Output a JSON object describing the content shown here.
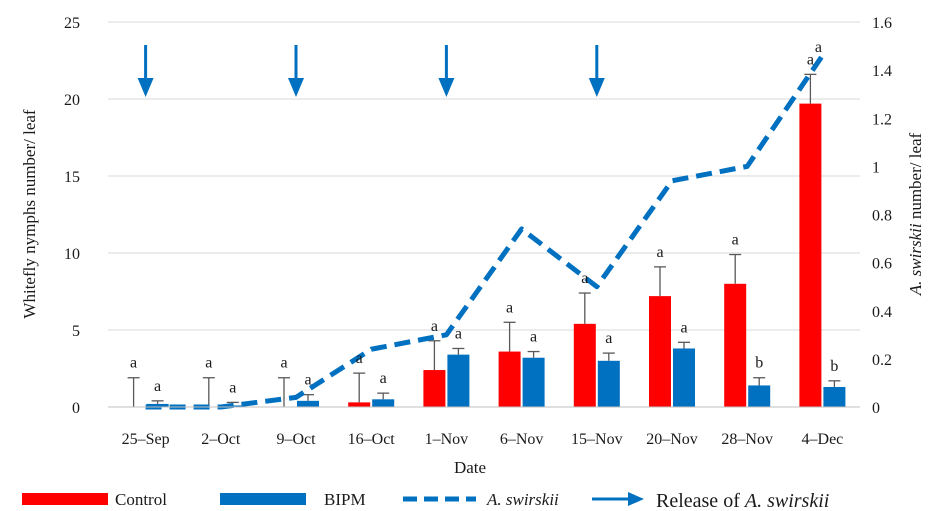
{
  "chart_data": {
    "type": "bar",
    "categories": [
      "25–Sep",
      "2–Oct",
      "9–Oct",
      "16–Oct",
      "1–Nov",
      "6–Nov",
      "15–Nov",
      "20–Nov",
      "28–Nov",
      "4–Dec"
    ],
    "xlabel": "Date",
    "ylabel": "Whitefly nymphs number/ leaf",
    "y2label_italic": "A. swirskii",
    "y2label_rest": " number/ leaf",
    "ylim": [
      0,
      25
    ],
    "y2lim": [
      0,
      1.6
    ],
    "y_ticks": [
      "0",
      "5",
      "10",
      "15",
      "20",
      "25"
    ],
    "y2_ticks": [
      "0",
      "0.2",
      "0.4",
      "0.6",
      "0.8",
      "1",
      "1.2",
      "1.4",
      "1.6"
    ],
    "grid": "horizontal",
    "series": [
      {
        "name": "Control",
        "kind": "bar",
        "axis": "left",
        "color": "#ff0000",
        "values": [
          0,
          0,
          0,
          0.3,
          2.4,
          3.6,
          5.4,
          7.2,
          8.0,
          19.7
        ],
        "error": [
          1.9,
          1.9,
          1.9,
          1.9,
          1.9,
          1.9,
          2.0,
          1.9,
          1.9,
          1.9
        ],
        "letters": [
          "a",
          "a",
          "a",
          "a",
          "a",
          "a",
          "a",
          "a",
          "a",
          "a"
        ]
      },
      {
        "name": "BIPM",
        "kind": "bar",
        "axis": "left",
        "color": "#0070c0",
        "values": [
          0.2,
          0.1,
          0.4,
          0.5,
          3.4,
          3.2,
          3.0,
          3.8,
          1.4,
          1.3
        ],
        "error": [
          0.2,
          0.2,
          0.4,
          0.4,
          0.4,
          0.4,
          0.5,
          0.4,
          0.5,
          0.4
        ],
        "letters": [
          "a",
          "a",
          "a",
          "a",
          "a",
          "a",
          "a",
          "a",
          "b",
          "b"
        ]
      },
      {
        "name": "A. swirskii",
        "kind": "line",
        "axis": "right",
        "style": "dashed",
        "color": "#0070c0",
        "values": [
          0.0,
          0.0,
          0.04,
          0.24,
          0.3,
          0.74,
          0.5,
          0.94,
          1.0,
          1.46
        ]
      }
    ],
    "releases": [
      "25–Sep",
      "9–Oct",
      "1–Nov",
      "15–Nov"
    ],
    "top_letter": "a"
  },
  "legend": {
    "control": "Control",
    "bipm": "BIPM",
    "line_italic": "A. swirskii",
    "release_prefix": "Release of ",
    "release_italic": "A. swirskii"
  }
}
